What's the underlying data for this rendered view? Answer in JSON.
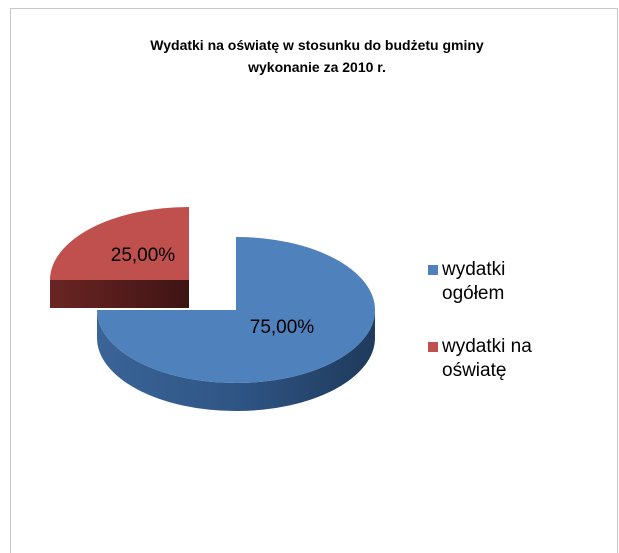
{
  "chart_data": {
    "type": "pie",
    "title": "Wydatki na oświatę w stosunku do budżetu gminy",
    "subtitle": "wykonanie za 2010 r.",
    "categories": [
      "wydatki ogółem",
      "wydatki na oświatę"
    ],
    "values": [
      75,
      25
    ],
    "value_labels": [
      "75,00%",
      "25,00%"
    ],
    "colors": [
      "#4f81bd",
      "#c0504d"
    ],
    "legend": "right"
  }
}
